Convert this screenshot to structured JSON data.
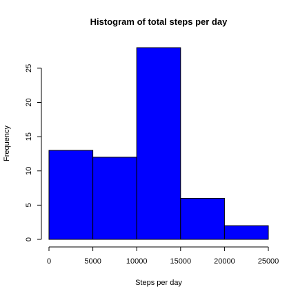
{
  "chart_data": {
    "type": "bar",
    "title": "Histogram of total steps per day",
    "xlabel": "Steps per day",
    "ylabel": "Frequency",
    "bins": [
      {
        "from": 0,
        "to": 5000,
        "count": 13
      },
      {
        "from": 5000,
        "to": 10000,
        "count": 12
      },
      {
        "from": 10000,
        "to": 15000,
        "count": 28
      },
      {
        "from": 15000,
        "to": 20000,
        "count": 6
      },
      {
        "from": 20000,
        "to": 25000,
        "count": 2
      }
    ],
    "xlim": [
      0,
      25000
    ],
    "ylim": [
      0,
      28
    ],
    "x_ticks": [
      0,
      5000,
      10000,
      15000,
      20000,
      25000
    ],
    "y_ticks": [
      0,
      5,
      10,
      15,
      20,
      25
    ],
    "bar_color": "#0000ff",
    "grid": false,
    "legend": "none"
  }
}
